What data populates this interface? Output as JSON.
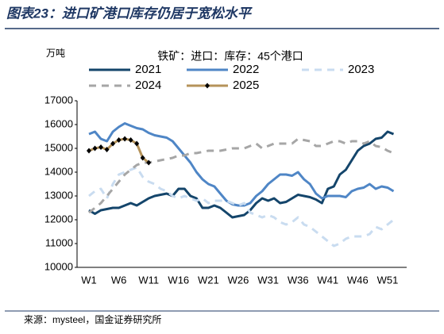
{
  "chart_data": {
    "type": "line",
    "title": "图表23：进口矿港口库存仍居于宽松水平",
    "subtitle": "铁矿：进口：库存：45个港口",
    "y_label": "万吨",
    "source": "来源：mysteel，国金证券研究所",
    "categories": [
      "W1",
      null,
      null,
      null,
      null,
      "W6",
      null,
      null,
      null,
      null,
      "W11",
      null,
      null,
      null,
      null,
      "W16",
      null,
      null,
      null,
      null,
      "W21",
      null,
      null,
      null,
      null,
      "W26",
      null,
      null,
      null,
      null,
      "W31",
      null,
      null,
      null,
      null,
      "W36",
      null,
      null,
      null,
      null,
      "W41",
      null,
      null,
      null,
      null,
      "W46",
      null,
      null,
      null,
      null,
      "W51",
      null
    ],
    "ylim": [
      10000,
      17000
    ],
    "yticks": [
      10000,
      11000,
      12000,
      13000,
      14000,
      15000,
      16000,
      17000
    ],
    "series": [
      {
        "name": "2021",
        "color": "#14456b",
        "line_style": "solid",
        "values": [
          12400,
          12250,
          12400,
          12450,
          12500,
          12500,
          12600,
          12700,
          12600,
          12750,
          12900,
          13000,
          13050,
          13100,
          13000,
          13300,
          13300,
          13000,
          12900,
          12500,
          12500,
          12600,
          12500,
          12300,
          12100,
          12150,
          12200,
          12400,
          12700,
          12900,
          12800,
          12900,
          12700,
          12750,
          12900,
          13050,
          13000,
          12950,
          12850,
          12700,
          13300,
          13400,
          13900,
          14100,
          14500,
          14900,
          15100,
          15200,
          15400,
          15450,
          15700,
          15600
        ]
      },
      {
        "name": "2022",
        "color": "#4f86c6",
        "line_style": "solid",
        "values": [
          15600,
          15700,
          15400,
          15300,
          15700,
          15900,
          16050,
          15950,
          15850,
          15800,
          15650,
          15550,
          15500,
          15450,
          15300,
          15000,
          14700,
          14400,
          14000,
          13700,
          13500,
          13400,
          13100,
          12800,
          12650,
          12600,
          12600,
          12700,
          13000,
          13200,
          13500,
          13700,
          13900,
          13900,
          13850,
          14000,
          13700,
          13500,
          13100,
          12900,
          13000,
          13000,
          13000,
          12950,
          13200,
          13300,
          13350,
          13500,
          13300,
          13400,
          13350,
          13200
        ]
      },
      {
        "name": "2023",
        "color": "#c9dcf0",
        "line_style": "dashed",
        "values": [
          13000,
          13200,
          13300,
          12900,
          13500,
          13900,
          14000,
          14100,
          14200,
          13800,
          13600,
          13500,
          13300,
          13200,
          13000,
          12900,
          13000,
          12900,
          12800,
          12900,
          12700,
          12800,
          12800,
          12800,
          12700,
          12600,
          12700,
          12300,
          12200,
          12100,
          12200,
          12100,
          11900,
          11800,
          11900,
          12100,
          11800,
          11700,
          11500,
          11300,
          11100,
          10900,
          11000,
          11200,
          11300,
          11300,
          11300,
          11400,
          11700,
          11600,
          11800,
          12000
        ]
      },
      {
        "name": "2024",
        "color": "#a6a6a6",
        "line_style": "dashed",
        "values": [
          12300,
          12500,
          12700,
          13000,
          13300,
          13600,
          13900,
          14100,
          14300,
          14400,
          14400,
          14450,
          14500,
          14550,
          14600,
          14700,
          14700,
          14800,
          14800,
          14850,
          14900,
          14900,
          14900,
          14950,
          15000,
          15000,
          15000,
          15100,
          15200,
          15000,
          15100,
          15200,
          15200,
          15200,
          15200,
          15400,
          15350,
          15300,
          15100,
          15100,
          15200,
          15300,
          15300,
          15200,
          15300,
          15300,
          15200,
          15300,
          15100,
          15050,
          14900,
          14800
        ]
      },
      {
        "name": "2025",
        "color": "#b5935a",
        "line_style": "solid",
        "marker": "diamond",
        "values": [
          14900,
          15000,
          15050,
          14950,
          15200,
          15350,
          15400,
          15350,
          15200,
          14600,
          14400,
          null,
          null,
          null,
          null,
          null,
          null,
          null,
          null,
          null,
          null,
          null,
          null,
          null,
          null,
          null,
          null,
          null,
          null,
          null,
          null,
          null,
          null,
          null,
          null,
          null,
          null,
          null,
          null,
          null,
          null,
          null,
          null,
          null,
          null,
          null,
          null,
          null,
          null,
          null,
          null,
          null
        ]
      }
    ]
  }
}
